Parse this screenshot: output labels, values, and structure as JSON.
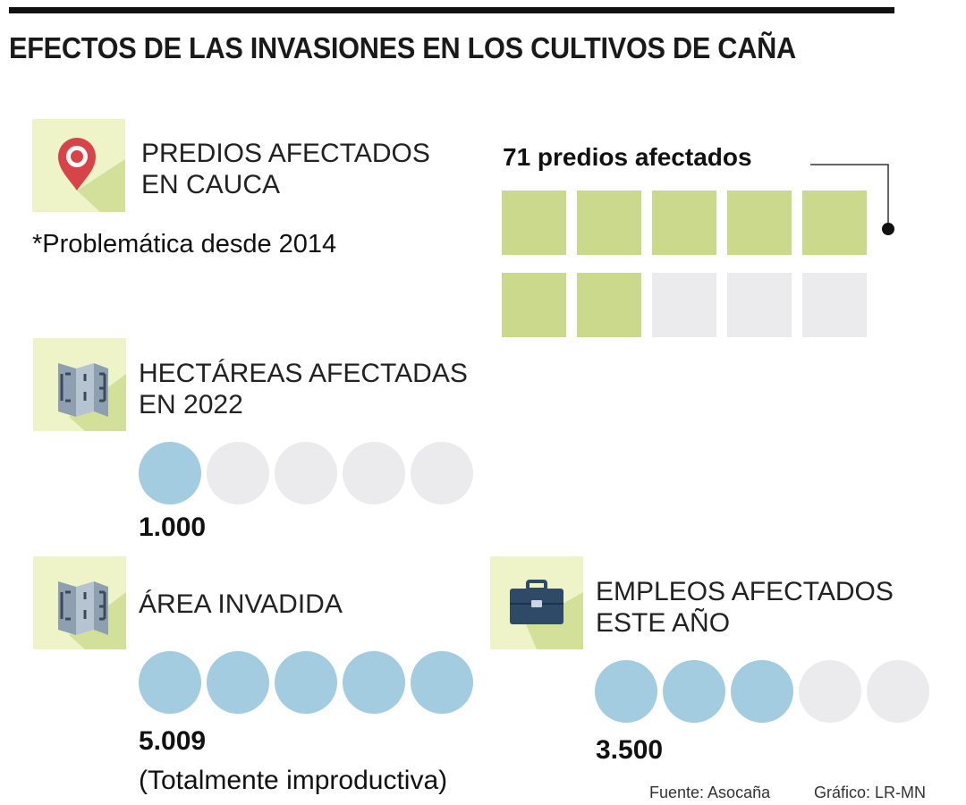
{
  "title": "EFECTOS DE LAS INVASIONES EN LOS CULTIVOS DE CAÑA",
  "colors": {
    "green_filled": "#cad98c",
    "empty": "#ebebed",
    "blue_filled": "#a3cce0",
    "icon_bg": "#eef3c8",
    "icon_shadow": "#d3e09a"
  },
  "predios": {
    "label_line1": "PREDIOS AFECTADOS",
    "label_line2": "EN CAUCA",
    "note": "*Problemática desde 2014",
    "chart_title": "71 predios afectados",
    "icon": "map-pin-icon"
  },
  "hectareas": {
    "label_line1": "HECTÁREAS AFECTADAS",
    "label_line2": "EN 2022",
    "value": "1.000",
    "icon": "map-icon"
  },
  "area": {
    "label_line1": "ÁREA INVADIDA",
    "value": "5.009",
    "note": "(Totalmente improductiva)",
    "icon": "map-icon"
  },
  "empleos": {
    "label_line1": "EMPLEOS AFECTADOS",
    "label_line2": "ESTE AÑO",
    "value": "3.500",
    "icon": "briefcase-icon"
  },
  "source": {
    "fuente": "Fuente: Asocaña",
    "grafico": "Gráfico: LR-MN"
  },
  "chart_data": [
    {
      "type": "pictogram",
      "title": "71 predios afectados",
      "units_total": 10,
      "units_filled": 7
    },
    {
      "type": "pictogram",
      "title": "HECTÁREAS AFECTADAS EN 2022",
      "value_label": "1.000",
      "units_total": 5,
      "units_filled": 1
    },
    {
      "type": "pictogram",
      "title": "ÁREA INVADIDA",
      "value_label": "5.009",
      "units_total": 5,
      "units_filled": 5
    },
    {
      "type": "pictogram",
      "title": "EMPLEOS AFECTADOS ESTE AÑO",
      "value_label": "3.500",
      "units_total": 5,
      "units_filled": 3
    }
  ]
}
